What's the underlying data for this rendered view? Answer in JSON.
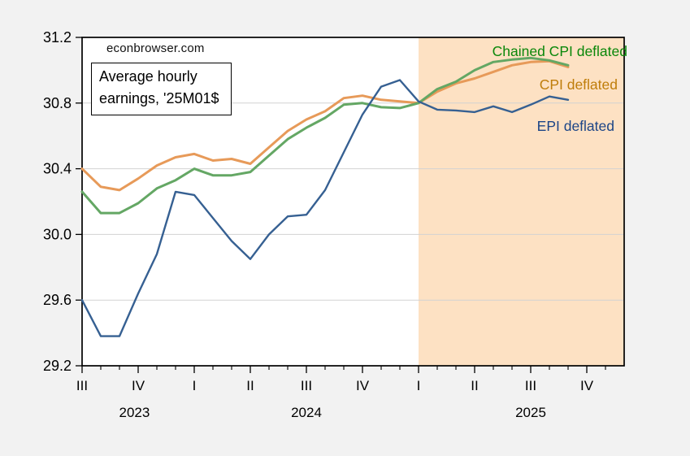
{
  "source_watermark": "econbrowser.com",
  "title_lines": [
    "Average hourly",
    "earnings, '25M01$"
  ],
  "colors": {
    "background": "#f2f2f2",
    "plot_background": "#ffffff",
    "frame": "#000000",
    "gridline": "#d2d2d2",
    "shade": "#fde1c3"
  },
  "chart_data": {
    "type": "line",
    "title": "Average hourly earnings, '25M01$",
    "source": "econbrowser.com",
    "xlabel": "",
    "ylabel": "",
    "ylim": [
      29.2,
      31.2
    ],
    "y_ticks": [
      29.2,
      29.6,
      30.0,
      30.4,
      30.8,
      31.2
    ],
    "grid": true,
    "legend_position": "inline-right",
    "x": [
      "2023-07",
      "2023-08",
      "2023-09",
      "2023-10",
      "2023-11",
      "2023-12",
      "2024-01",
      "2024-02",
      "2024-03",
      "2024-04",
      "2024-05",
      "2024-06",
      "2024-07",
      "2024-08",
      "2024-09",
      "2024-10",
      "2024-11",
      "2024-12",
      "2025-01",
      "2025-02",
      "2025-03",
      "2025-04",
      "2025-05",
      "2025-06",
      "2025-07",
      "2025-08",
      "2025-09"
    ],
    "series": [
      {
        "name": "Chained CPI deflated",
        "color": "#64a764",
        "label_color": "#0a870a",
        "values": [
          30.26,
          30.13,
          30.13,
          30.19,
          30.28,
          30.33,
          30.4,
          30.36,
          30.36,
          30.38,
          30.48,
          30.58,
          30.65,
          30.71,
          30.79,
          30.8,
          30.775,
          30.77,
          30.8,
          30.885,
          30.93,
          31.0,
          31.05,
          31.065,
          31.075,
          31.06,
          31.03
        ]
      },
      {
        "name": "CPI deflated",
        "color": "#e79a59",
        "label_color": "#bf7d0a",
        "values": [
          30.4,
          30.29,
          30.27,
          30.34,
          30.42,
          30.47,
          30.49,
          30.45,
          30.46,
          30.43,
          30.53,
          30.63,
          30.7,
          30.75,
          30.83,
          30.845,
          30.82,
          30.81,
          30.8,
          30.87,
          30.92,
          30.95,
          30.99,
          31.03,
          31.05,
          31.055,
          31.02
        ]
      },
      {
        "name": "EPI deflated",
        "color": "#366092",
        "label_color": "#1c4587",
        "values": [
          29.6,
          29.38,
          29.38,
          29.64,
          29.88,
          30.26,
          30.24,
          30.1,
          29.96,
          29.85,
          30.0,
          30.11,
          30.12,
          30.27,
          30.5,
          30.73,
          30.9,
          30.94,
          30.81,
          30.76,
          30.755,
          30.745,
          30.78,
          30.745,
          30.79,
          30.84,
          30.82
        ]
      }
    ],
    "x_axis": {
      "months_span": 29,
      "quarter_ticks": [
        {
          "index": 0,
          "label": "III"
        },
        {
          "index": 3,
          "label": "IV"
        },
        {
          "index": 6,
          "label": "I"
        },
        {
          "index": 9,
          "label": "II"
        },
        {
          "index": 12,
          "label": "III"
        },
        {
          "index": 15,
          "label": "IV"
        },
        {
          "index": 18,
          "label": "I"
        },
        {
          "index": 21,
          "label": "II"
        },
        {
          "index": 24,
          "label": "III"
        },
        {
          "index": 27,
          "label": "IV"
        }
      ],
      "year_labels": [
        {
          "index": 2.8,
          "label": "2023"
        },
        {
          "index": 12,
          "label": "2024"
        },
        {
          "index": 24,
          "label": "2025"
        }
      ]
    },
    "shade": {
      "start_index": 18,
      "end_index": 29
    }
  }
}
